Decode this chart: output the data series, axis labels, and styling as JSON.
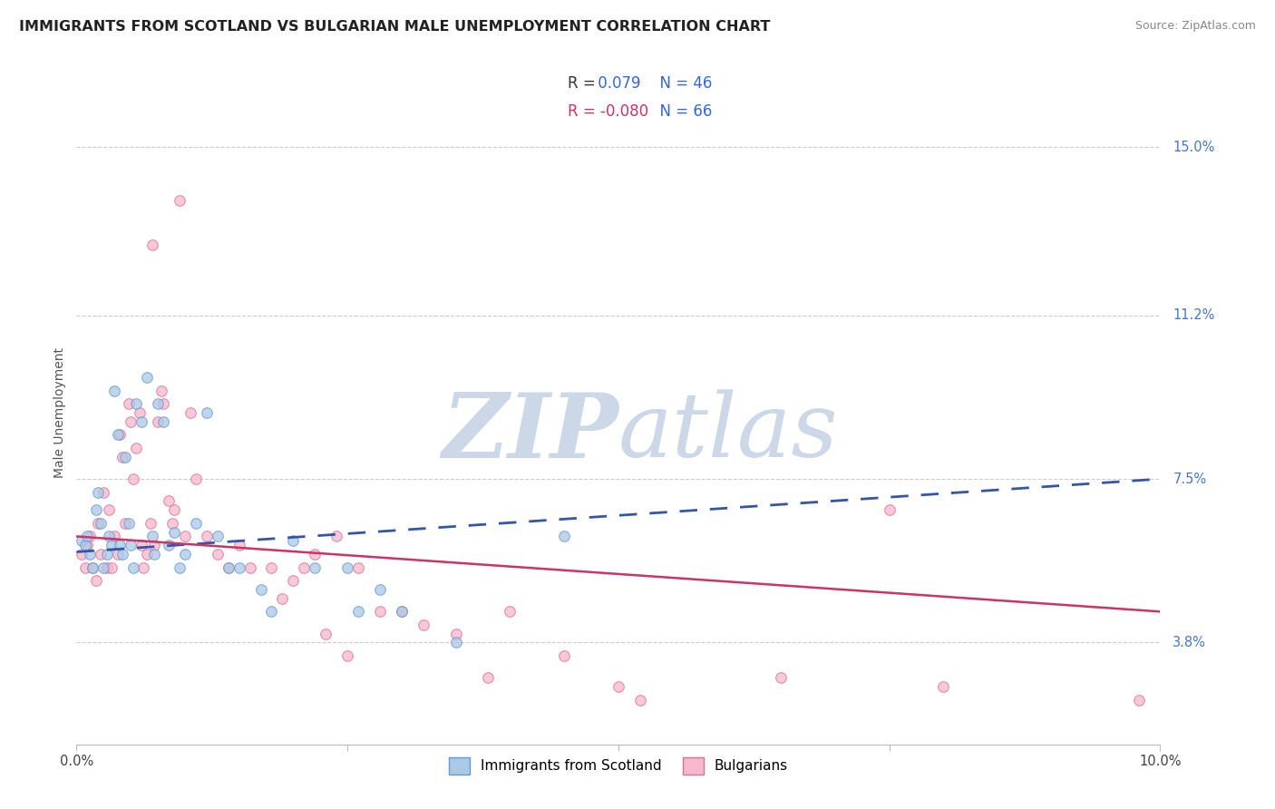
{
  "title": "IMMIGRANTS FROM SCOTLAND VS BULGARIAN MALE UNEMPLOYMENT CORRELATION CHART",
  "source": "Source: ZipAtlas.com",
  "ylabel": "Male Unemployment",
  "ytick_labels": [
    "3.8%",
    "7.5%",
    "11.2%",
    "15.0%"
  ],
  "ytick_values": [
    3.8,
    7.5,
    11.2,
    15.0
  ],
  "xlim": [
    0.0,
    10.0
  ],
  "ylim": [
    1.5,
    16.5
  ],
  "legend_blue_label": "Immigrants from Scotland",
  "legend_pink_label": "Bulgarians",
  "blue_scatter": [
    [
      0.05,
      6.1
    ],
    [
      0.08,
      6.0
    ],
    [
      0.1,
      6.2
    ],
    [
      0.12,
      5.8
    ],
    [
      0.15,
      5.5
    ],
    [
      0.18,
      6.8
    ],
    [
      0.2,
      7.2
    ],
    [
      0.22,
      6.5
    ],
    [
      0.25,
      5.5
    ],
    [
      0.28,
      5.8
    ],
    [
      0.3,
      6.2
    ],
    [
      0.32,
      6.0
    ],
    [
      0.35,
      9.5
    ],
    [
      0.38,
      8.5
    ],
    [
      0.4,
      6.0
    ],
    [
      0.42,
      5.8
    ],
    [
      0.45,
      8.0
    ],
    [
      0.48,
      6.5
    ],
    [
      0.5,
      6.0
    ],
    [
      0.52,
      5.5
    ],
    [
      0.55,
      9.2
    ],
    [
      0.6,
      8.8
    ],
    [
      0.65,
      9.8
    ],
    [
      0.7,
      6.2
    ],
    [
      0.72,
      5.8
    ],
    [
      0.75,
      9.2
    ],
    [
      0.8,
      8.8
    ],
    [
      0.85,
      6.0
    ],
    [
      0.9,
      6.3
    ],
    [
      0.95,
      5.5
    ],
    [
      1.0,
      5.8
    ],
    [
      1.1,
      6.5
    ],
    [
      1.2,
      9.0
    ],
    [
      1.3,
      6.2
    ],
    [
      1.4,
      5.5
    ],
    [
      1.5,
      5.5
    ],
    [
      1.7,
      5.0
    ],
    [
      1.8,
      4.5
    ],
    [
      2.0,
      6.1
    ],
    [
      2.2,
      5.5
    ],
    [
      2.5,
      5.5
    ],
    [
      2.6,
      4.5
    ],
    [
      2.8,
      5.0
    ],
    [
      3.0,
      4.5
    ],
    [
      3.5,
      3.8
    ],
    [
      4.5,
      6.2
    ]
  ],
  "pink_scatter": [
    [
      0.05,
      5.8
    ],
    [
      0.08,
      5.5
    ],
    [
      0.1,
      6.0
    ],
    [
      0.12,
      6.2
    ],
    [
      0.15,
      5.5
    ],
    [
      0.18,
      5.2
    ],
    [
      0.2,
      6.5
    ],
    [
      0.22,
      5.8
    ],
    [
      0.25,
      7.2
    ],
    [
      0.28,
      5.5
    ],
    [
      0.3,
      6.8
    ],
    [
      0.32,
      5.5
    ],
    [
      0.35,
      6.2
    ],
    [
      0.38,
      5.8
    ],
    [
      0.4,
      8.5
    ],
    [
      0.42,
      8.0
    ],
    [
      0.45,
      6.5
    ],
    [
      0.48,
      9.2
    ],
    [
      0.5,
      8.8
    ],
    [
      0.52,
      7.5
    ],
    [
      0.55,
      8.2
    ],
    [
      0.58,
      9.0
    ],
    [
      0.6,
      6.0
    ],
    [
      0.62,
      5.5
    ],
    [
      0.65,
      5.8
    ],
    [
      0.68,
      6.5
    ],
    [
      0.7,
      12.8
    ],
    [
      0.72,
      6.0
    ],
    [
      0.75,
      8.8
    ],
    [
      0.78,
      9.5
    ],
    [
      0.8,
      9.2
    ],
    [
      0.85,
      7.0
    ],
    [
      0.88,
      6.5
    ],
    [
      0.9,
      6.8
    ],
    [
      0.95,
      13.8
    ],
    [
      1.0,
      6.2
    ],
    [
      1.05,
      9.0
    ],
    [
      1.1,
      7.5
    ],
    [
      1.2,
      6.2
    ],
    [
      1.3,
      5.8
    ],
    [
      1.4,
      5.5
    ],
    [
      1.5,
      6.0
    ],
    [
      1.6,
      5.5
    ],
    [
      1.8,
      5.5
    ],
    [
      1.9,
      4.8
    ],
    [
      2.0,
      5.2
    ],
    [
      2.1,
      5.5
    ],
    [
      2.2,
      5.8
    ],
    [
      2.3,
      4.0
    ],
    [
      2.4,
      6.2
    ],
    [
      2.5,
      3.5
    ],
    [
      2.6,
      5.5
    ],
    [
      2.8,
      4.5
    ],
    [
      3.0,
      4.5
    ],
    [
      3.2,
      4.2
    ],
    [
      3.5,
      4.0
    ],
    [
      3.8,
      3.0
    ],
    [
      4.0,
      4.5
    ],
    [
      4.5,
      3.5
    ],
    [
      5.0,
      2.8
    ],
    [
      5.2,
      2.5
    ],
    [
      6.5,
      3.0
    ],
    [
      7.5,
      6.8
    ],
    [
      8.0,
      2.8
    ],
    [
      9.8,
      2.5
    ]
  ],
  "blue_line_x": [
    0.0,
    10.0
  ],
  "blue_line_y": [
    5.85,
    7.5
  ],
  "pink_line_x": [
    0.0,
    10.0
  ],
  "pink_line_y": [
    6.2,
    4.5
  ],
  "scatter_alpha": 0.75,
  "scatter_size": 70,
  "blue_color": "#aac8e8",
  "blue_edge": "#6699cc",
  "pink_color": "#f5b8cc",
  "pink_edge": "#e07090",
  "blue_line_color": "#3355aa",
  "pink_line_color": "#cc3366",
  "background_color": "#ffffff",
  "grid_color": "#cccccc",
  "watermark_color": "#ccd8e8",
  "title_fontsize": 11.5,
  "axis_label_fontsize": 10,
  "tick_fontsize": 10.5,
  "source_fontsize": 9
}
